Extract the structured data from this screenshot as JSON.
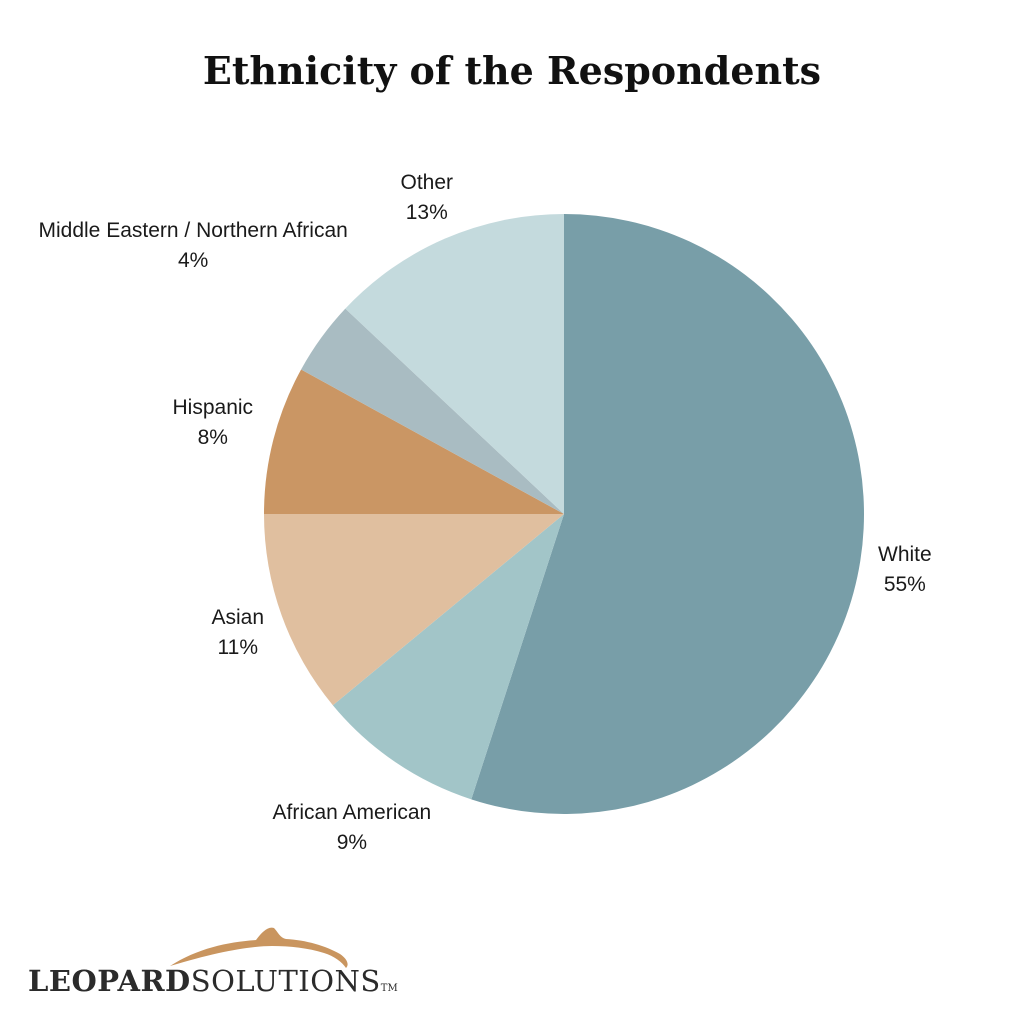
{
  "chart_data": {
    "type": "pie",
    "title": "Ethnicity of the Respondents",
    "start": "12 o'clock, clockwise",
    "slices": [
      {
        "label": "White",
        "value_label": "55%",
        "value": 55,
        "color": "#789ea8"
      },
      {
        "label": "African American",
        "value_label": "9%",
        "value": 9,
        "color": "#a2c5c8"
      },
      {
        "label": "Asian",
        "value_label": "11%",
        "value": 11,
        "color": "#e0bf9f"
      },
      {
        "label": "Hispanic",
        "value_label": "8%",
        "value": 8,
        "color": "#ca9664"
      },
      {
        "label": "Middle Eastern / Northern African",
        "value_label": "4%",
        "value": 4,
        "color": "#a9bcc2"
      },
      {
        "label": "Other",
        "value_label": "13%",
        "value": 13,
        "color": "#c4dadd"
      }
    ]
  },
  "logo": {
    "bold_text": "LEOPARD",
    "regular_text": "SOLUTIONS",
    "tm": "TM",
    "accent_color": "#c9955f"
  }
}
